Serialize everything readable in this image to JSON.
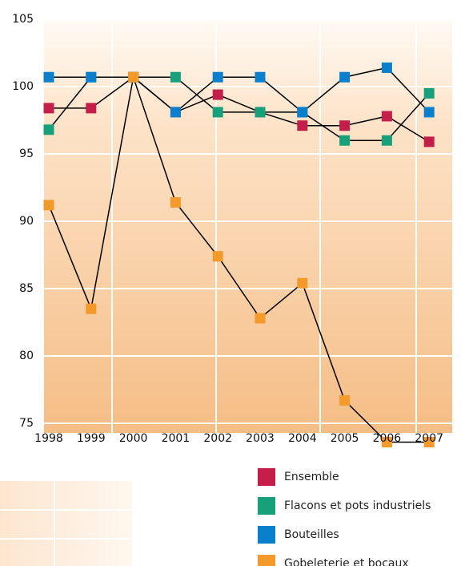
{
  "chart_data": {
    "type": "line",
    "categories": [
      "1998",
      "1999",
      "2000",
      "2001",
      "2002",
      "2003",
      "2004",
      "2005",
      "2006",
      "2007"
    ],
    "series": [
      {
        "name": "Ensemble",
        "color": "#c41e4a",
        "values": [
          98.4,
          98.4,
          100.7,
          98.1,
          99.4,
          98.1,
          97.1,
          97.1,
          97.8,
          95.9
        ]
      },
      {
        "name": "Flacons et pots industriels",
        "color": "#17a07a",
        "values": [
          96.8,
          100.7,
          100.7,
          100.7,
          98.1,
          98.1,
          98.1,
          96.0,
          96.0,
          99.5
        ]
      },
      {
        "name": "Bouteilles",
        "color": "#0a7fcb",
        "values": [
          100.7,
          100.7,
          100.7,
          98.1,
          100.7,
          100.7,
          98.1,
          100.7,
          101.4,
          98.1
        ]
      },
      {
        "name": "Gobeleterie et bocaux",
        "color": "#f39a2b",
        "values": [
          91.2,
          83.5,
          100.7,
          91.4,
          87.4,
          82.8,
          85.4,
          76.7,
          73.6,
          73.6
        ]
      }
    ],
    "ylim": [
      75,
      105
    ],
    "yticks": [
      75,
      80,
      85,
      90,
      95,
      100,
      105
    ],
    "grid": true
  }
}
